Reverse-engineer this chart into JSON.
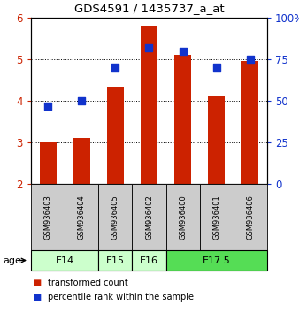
{
  "title": "GDS4591 / 1435737_a_at",
  "samples": [
    "GSM936403",
    "GSM936404",
    "GSM936405",
    "GSM936402",
    "GSM936400",
    "GSM936401",
    "GSM936406"
  ],
  "transformed_counts": [
    3.0,
    3.1,
    4.35,
    5.8,
    5.1,
    4.1,
    4.95
  ],
  "percentile_ranks": [
    47,
    50,
    70,
    82,
    80,
    70,
    75
  ],
  "age_groups": [
    {
      "label": "E14",
      "start": 0,
      "end": 1,
      "color": "#ccffcc"
    },
    {
      "label": "E15",
      "start": 2,
      "end": 2,
      "color": "#ccffcc"
    },
    {
      "label": "E16",
      "start": 3,
      "end": 3,
      "color": "#ccffcc"
    },
    {
      "label": "E17.5",
      "start": 4,
      "end": 6,
      "color": "#55dd55"
    }
  ],
  "ylim_left": [
    2,
    6
  ],
  "ylim_right": [
    0,
    100
  ],
  "yticks_left": [
    2,
    3,
    4,
    5,
    6
  ],
  "yticks_right": [
    0,
    25,
    50,
    75,
    100
  ],
  "ytick_labels_right": [
    "0",
    "25",
    "50",
    "75",
    "100%"
  ],
  "bar_color": "#cc2200",
  "dot_color": "#1133cc",
  "bar_bottom": 2.0,
  "bar_width": 0.5,
  "dot_size": 40,
  "legend_bar_label": "transformed count",
  "legend_dot_label": "percentile rank within the sample",
  "age_label": "age",
  "sample_bg_color": "#cccccc"
}
